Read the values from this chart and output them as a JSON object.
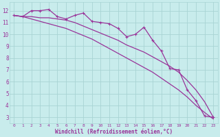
{
  "xlabel": "Windchill (Refroidissement éolien,°C)",
  "bg_color": "#c8ecec",
  "grid_color": "#a8d4d4",
  "line_color": "#993399",
  "xlim": [
    -0.5,
    23.5
  ],
  "ylim": [
    2.5,
    12.7
  ],
  "yticks": [
    3,
    4,
    5,
    6,
    7,
    8,
    9,
    10,
    11,
    12
  ],
  "xticks": [
    0,
    1,
    2,
    3,
    4,
    5,
    6,
    7,
    8,
    9,
    10,
    11,
    12,
    13,
    14,
    15,
    16,
    17,
    18,
    19,
    20,
    21,
    22,
    23
  ],
  "line1_x": [
    0,
    1,
    2,
    3,
    4,
    5,
    6,
    7,
    8,
    9,
    10,
    11,
    12,
    13,
    14,
    15,
    16,
    17,
    18,
    19,
    20,
    21,
    22,
    23
  ],
  "line1_y": [
    11.6,
    11.5,
    12.0,
    12.0,
    12.1,
    11.5,
    11.3,
    11.6,
    11.8,
    11.1,
    11.0,
    10.9,
    10.5,
    9.8,
    10.0,
    10.6,
    9.5,
    8.6,
    7.1,
    7.0,
    5.3,
    4.4,
    3.1,
    3.0
  ],
  "line2_x": [
    0,
    1,
    2,
    3,
    4,
    5,
    6,
    7,
    8,
    9,
    10,
    11,
    12,
    13,
    14,
    15,
    16,
    17,
    18,
    19,
    20,
    21,
    22,
    23
  ],
  "line2_y": [
    11.6,
    11.5,
    11.5,
    11.4,
    11.4,
    11.3,
    11.2,
    11.0,
    10.7,
    10.4,
    10.1,
    9.8,
    9.5,
    9.1,
    8.8,
    8.5,
    8.1,
    7.7,
    7.3,
    6.8,
    6.1,
    5.3,
    4.3,
    3.0
  ],
  "line3_x": [
    0,
    1,
    2,
    3,
    4,
    5,
    6,
    7,
    8,
    9,
    10,
    11,
    12,
    13,
    14,
    15,
    16,
    17,
    18,
    19,
    20,
    21,
    22,
    23
  ],
  "line3_y": [
    11.6,
    11.5,
    11.3,
    11.1,
    10.9,
    10.7,
    10.5,
    10.2,
    9.9,
    9.6,
    9.2,
    8.8,
    8.4,
    8.0,
    7.6,
    7.2,
    6.8,
    6.3,
    5.8,
    5.3,
    4.7,
    4.0,
    3.4,
    2.85
  ]
}
